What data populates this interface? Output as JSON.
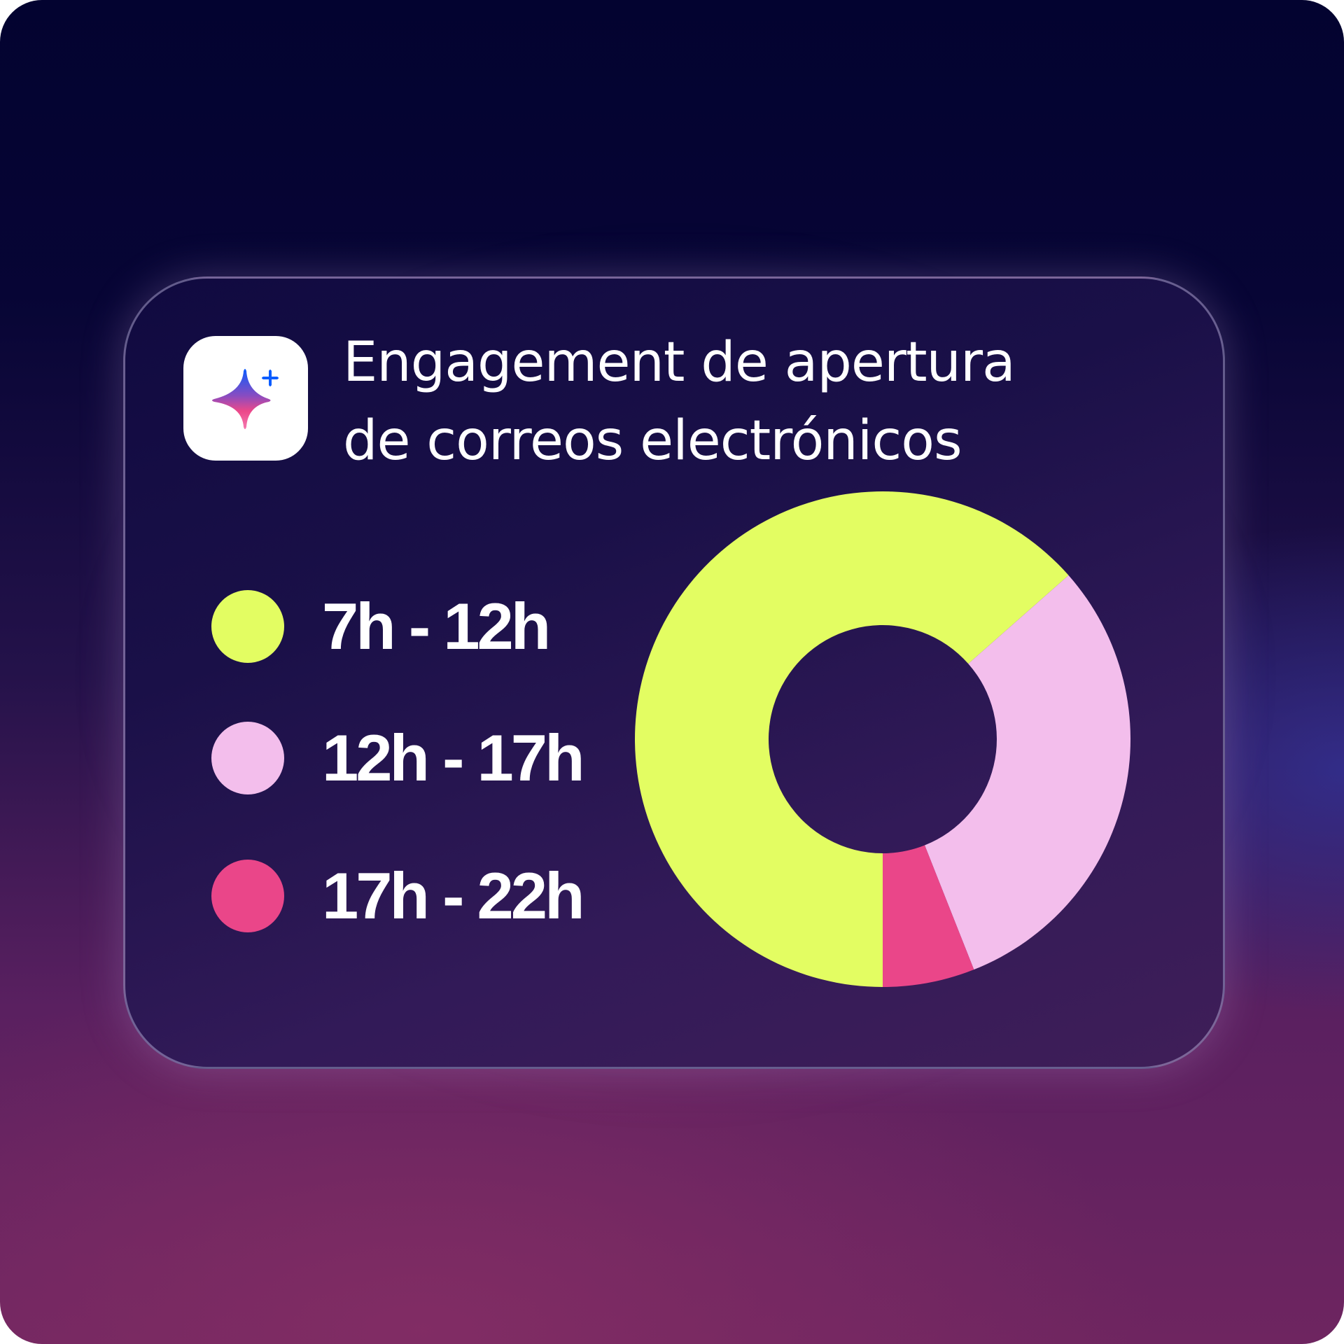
{
  "title_lines": [
    "Engagement de apertura",
    "de correos electrónicos"
  ],
  "app_icon": "sparkle-icon",
  "colors": {
    "accent_blue": "#0a5cff",
    "accent_pink": "#ec4889"
  },
  "chart_data": {
    "type": "pie",
    "donut": true,
    "title": "Engagement de apertura de correos electrónicos",
    "categories": [
      "7h - 12h",
      "12h - 17h",
      "17h - 22h"
    ],
    "values": [
      63.5,
      30.5,
      6
    ],
    "colors": [
      "#e3fd62",
      "#f3beec",
      "#ea4689"
    ],
    "legend_position": "left"
  }
}
